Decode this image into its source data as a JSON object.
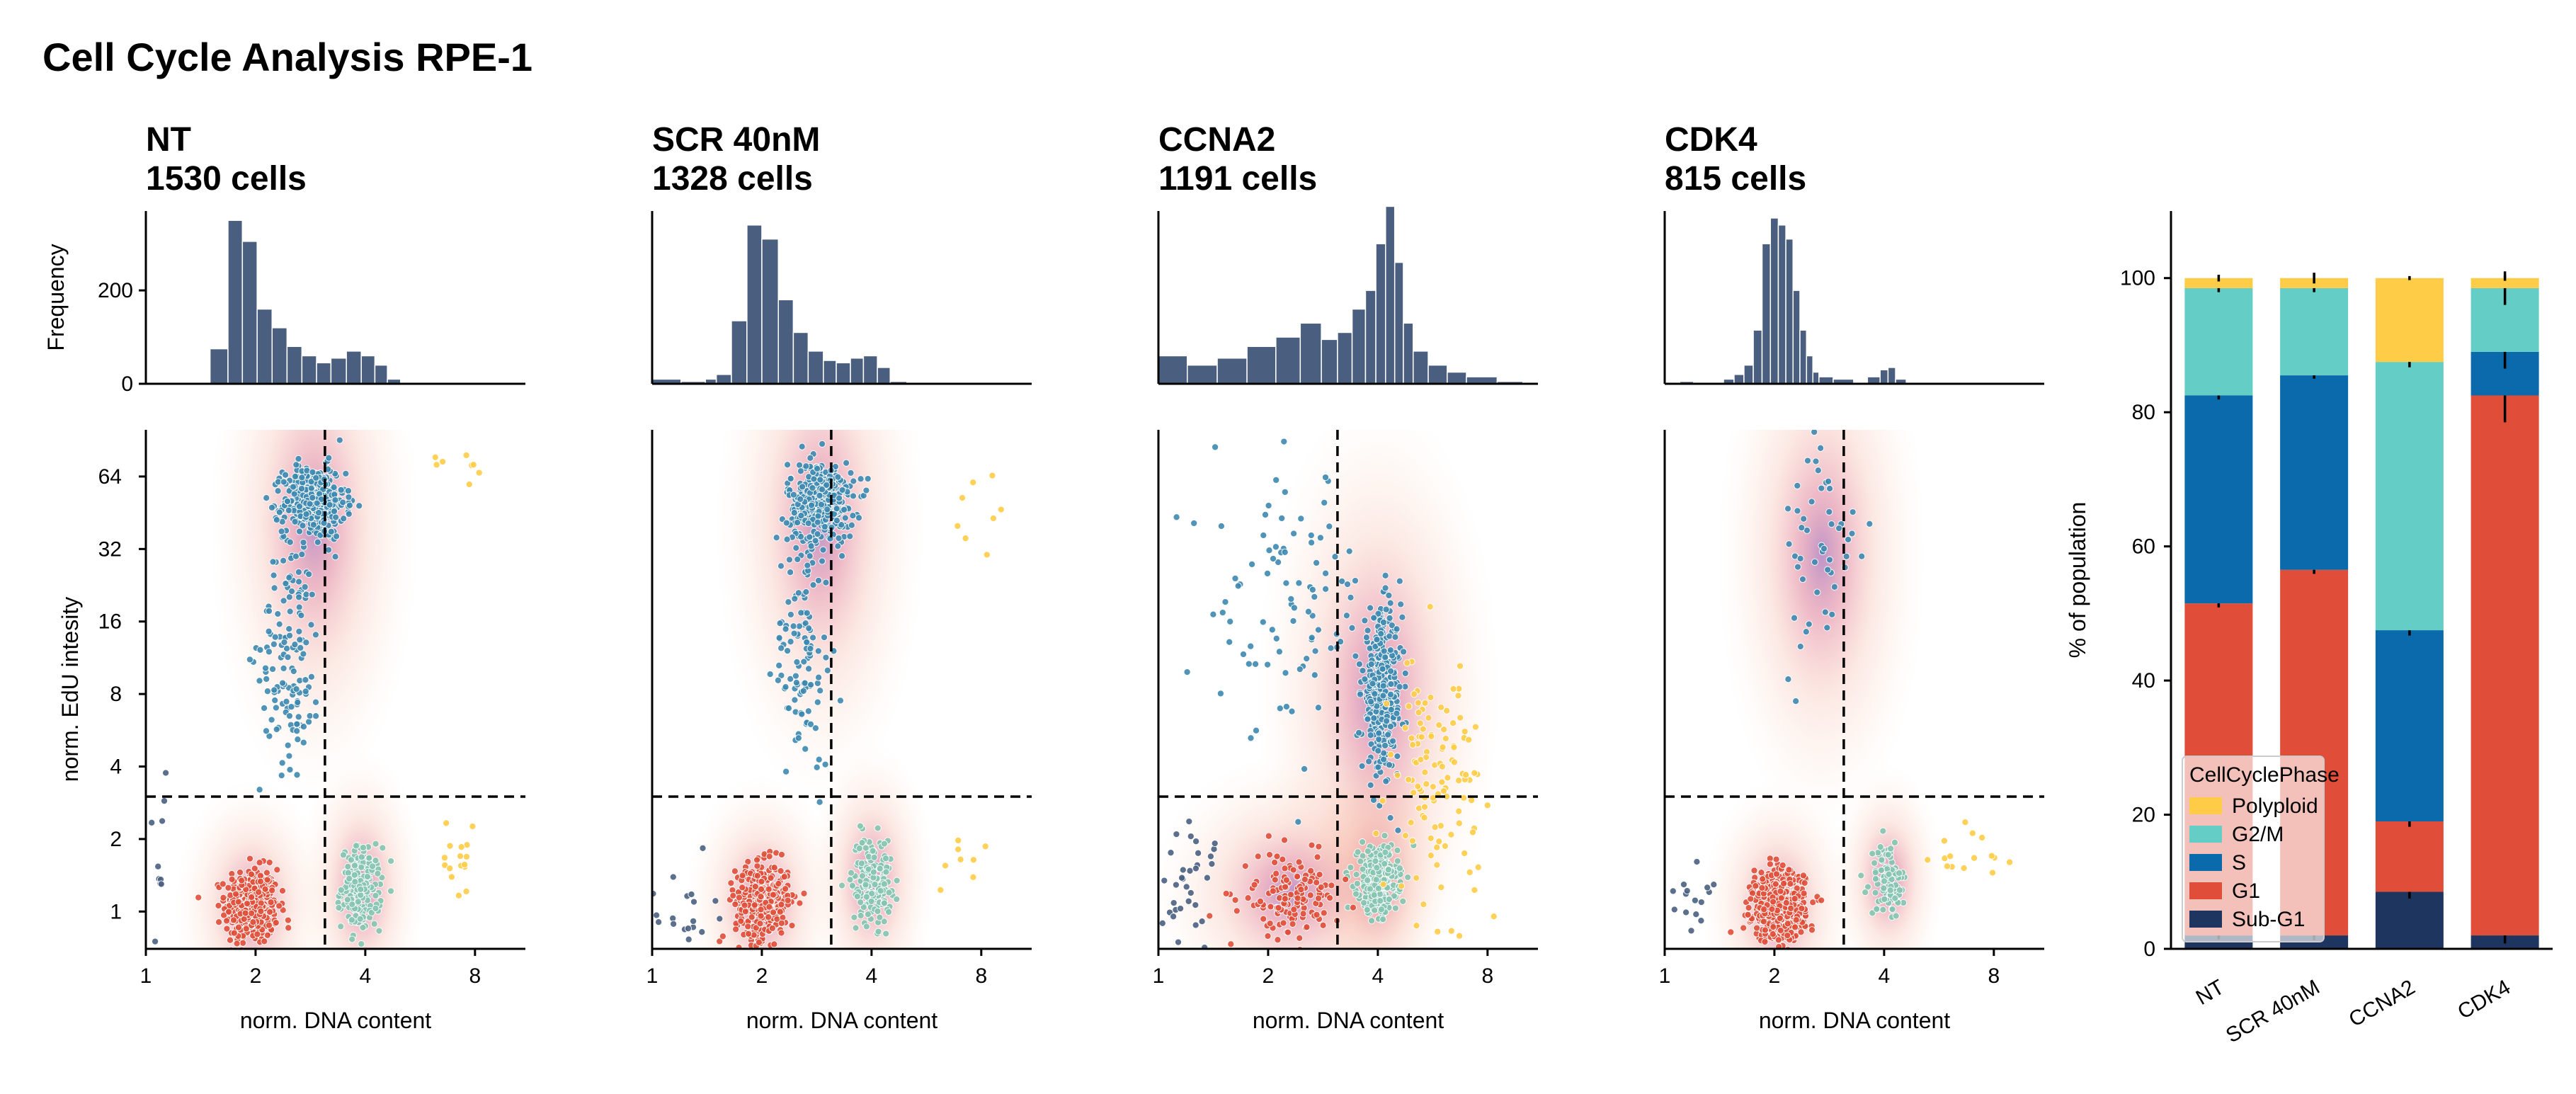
{
  "figure": {
    "title": "Cell Cycle Analysis RPE-1"
  },
  "colors": {
    "histogram": "#4a5f80",
    "Sub-G1": "#1e3560",
    "G1": "#e04e39",
    "S": "#0a6aab",
    "G2/M": "#64cdc5",
    "Polyploid": "#ffcc47",
    "scatter_s": "#3d88b0",
    "scatter_g1": "#e04e39",
    "scatter_g2": "#85c4b0",
    "scatter_poly": "#ffcc47",
    "scatter_subg1": "#4a5f80"
  },
  "panels": [
    {
      "label": "NT",
      "cells": "1530 cells"
    },
    {
      "label": "SCR 40nM",
      "cells": "1328 cells"
    },
    {
      "label": "CCNA2",
      "cells": "1191 cells"
    },
    {
      "label": "CDK4",
      "cells": "815 cells"
    }
  ],
  "axes": {
    "hist_ylabel": "Frequency",
    "hist_yticks": [
      "0",
      "200"
    ],
    "scatter_ylabel": "norm. EdU intesity",
    "scatter_xlabel": "norm. DNA content",
    "x_ticks": [
      "1",
      "2",
      "4",
      "8"
    ],
    "y_ticks": [
      "1",
      "2",
      "4",
      "8",
      "16",
      "32",
      "64"
    ],
    "bar_ylabel": "% of population",
    "bar_yticks": [
      "0",
      "20",
      "40",
      "60",
      "80",
      "100"
    ]
  },
  "chart_data": [
    {
      "type": "bar",
      "subtype": "stacked",
      "ylabel": "% of population",
      "ylim": [
        0,
        110
      ],
      "categories": [
        "NT",
        "SCR 40nM",
        "CCNA2",
        "CDK4"
      ],
      "series": [
        {
          "name": "Sub-G1",
          "values": [
            2,
            2,
            8.5,
            2
          ]
        },
        {
          "name": "G1",
          "values": [
            49.5,
            54.5,
            10.5,
            80.5
          ]
        },
        {
          "name": "S",
          "values": [
            31,
            29,
            28.5,
            6.5
          ]
        },
        {
          "name": "G2/M",
          "values": [
            16,
            13,
            40,
            9.5
          ]
        },
        {
          "name": "Polyploid",
          "values": [
            1.5,
            1.5,
            12.5,
            1.5
          ]
        }
      ],
      "legend": {
        "title": "CellCyclePhase",
        "position": "lower-left",
        "order": [
          "Polyploid",
          "G2/M",
          "S",
          "G1",
          "Sub-G1"
        ]
      }
    },
    {
      "type": "histogram",
      "panel": "NT",
      "ylabel": "Frequency",
      "x_scale": "log2",
      "xlim": [
        1,
        11
      ],
      "ylim": [
        0,
        370
      ],
      "bins": [
        [
          1.5,
          1.68,
          75
        ],
        [
          1.68,
          1.84,
          350
        ],
        [
          1.84,
          2.02,
          305
        ],
        [
          2.02,
          2.22,
          160
        ],
        [
          2.22,
          2.44,
          120
        ],
        [
          2.44,
          2.68,
          80
        ],
        [
          2.68,
          2.94,
          60
        ],
        [
          2.94,
          3.22,
          45
        ],
        [
          3.22,
          3.55,
          55
        ],
        [
          3.55,
          3.9,
          70
        ],
        [
          3.9,
          4.25,
          60
        ],
        [
          4.25,
          4.6,
          40
        ],
        [
          4.6,
          5,
          10
        ]
      ]
    },
    {
      "type": "histogram",
      "panel": "SCR 40nM",
      "x_scale": "log2",
      "xlim": [
        1,
        11
      ],
      "ylim": [
        0,
        370
      ],
      "bins": [
        [
          1,
          1.2,
          10
        ],
        [
          1.2,
          1.4,
          5
        ],
        [
          1.4,
          1.5,
          10
        ],
        [
          1.5,
          1.65,
          20
        ],
        [
          1.65,
          1.82,
          135
        ],
        [
          1.82,
          2,
          340
        ],
        [
          2,
          2.22,
          310
        ],
        [
          2.22,
          2.44,
          180
        ],
        [
          2.44,
          2.68,
          110
        ],
        [
          2.68,
          2.95,
          70
        ],
        [
          2.95,
          3.2,
          50
        ],
        [
          3.2,
          3.5,
          45
        ],
        [
          3.5,
          3.8,
          55
        ],
        [
          3.8,
          4.15,
          60
        ],
        [
          4.15,
          4.5,
          35
        ],
        [
          4.5,
          5,
          5
        ]
      ]
    },
    {
      "type": "histogram",
      "panel": "CCNA2",
      "x_scale": "log2",
      "xlim": [
        1,
        11
      ],
      "ylim": [
        0,
        370
      ],
      "bins": [
        [
          1,
          1.2,
          60
        ],
        [
          1.2,
          1.45,
          40
        ],
        [
          1.45,
          1.75,
          55
        ],
        [
          1.75,
          2.1,
          80
        ],
        [
          2.1,
          2.45,
          100
        ],
        [
          2.45,
          2.8,
          130
        ],
        [
          2.8,
          3.1,
          95
        ],
        [
          3.1,
          3.4,
          110
        ],
        [
          3.4,
          3.7,
          160
        ],
        [
          3.7,
          3.95,
          200
        ],
        [
          3.95,
          4.2,
          300
        ],
        [
          4.2,
          4.45,
          380
        ],
        [
          4.45,
          4.7,
          260
        ],
        [
          4.7,
          5,
          130
        ],
        [
          5,
          5.5,
          70
        ],
        [
          5.5,
          6.2,
          40
        ],
        [
          6.2,
          7,
          25
        ],
        [
          7,
          8.5,
          15
        ],
        [
          8.5,
          10,
          5
        ]
      ]
    },
    {
      "type": "histogram",
      "panel": "CDK4",
      "x_scale": "log2",
      "xlim": [
        1,
        11
      ],
      "ylim": [
        0,
        370
      ],
      "bins": [
        [
          1.1,
          1.2,
          5
        ],
        [
          1.45,
          1.55,
          10
        ],
        [
          1.55,
          1.65,
          20
        ],
        [
          1.65,
          1.75,
          40
        ],
        [
          1.75,
          1.85,
          115
        ],
        [
          1.85,
          1.95,
          300
        ],
        [
          1.95,
          2.05,
          355
        ],
        [
          2.05,
          2.15,
          340
        ],
        [
          2.15,
          2.25,
          310
        ],
        [
          2.25,
          2.35,
          200
        ],
        [
          2.35,
          2.45,
          115
        ],
        [
          2.45,
          2.55,
          60
        ],
        [
          2.55,
          2.65,
          25
        ],
        [
          2.65,
          2.9,
          15
        ],
        [
          2.9,
          3.3,
          10
        ],
        [
          3.6,
          3.9,
          15
        ],
        [
          3.9,
          4.1,
          30
        ],
        [
          4.1,
          4.3,
          35
        ],
        [
          4.3,
          4.6,
          10
        ]
      ]
    },
    {
      "type": "scatter",
      "panel": "NT",
      "xlabel": "norm. DNA content",
      "ylabel": "norm. EdU intesity",
      "x_scale": "log2",
      "y_scale": "log2",
      "xlim": [
        1,
        11
      ],
      "ylim": [
        0.7,
        100
      ],
      "gates": {
        "x": 3.1,
        "y": 3.0
      },
      "populations": [
        {
          "phase": "G1",
          "n": 420,
          "cx": 1.95,
          "cy": 1.05,
          "sx": 0.12,
          "sy": 0.26
        },
        {
          "phase": "G2/M",
          "n": 200,
          "cx": 3.9,
          "cy": 1.25,
          "sx": 0.09,
          "sy": 0.28
        },
        {
          "phase": "S",
          "n": 420,
          "cx": 2.9,
          "cy": 50,
          "sx": 0.14,
          "sy": 0.25
        },
        {
          "phase": "S",
          "n": 140,
          "cx": 2.5,
          "cy": 12,
          "sx": 0.14,
          "sy": 0.8
        },
        {
          "phase": "Polyploid",
          "n": 16,
          "cx": 7,
          "cy": 1.6,
          "sx": 0.12,
          "sy": 0.25
        },
        {
          "phase": "Polyploid",
          "n": 8,
          "cx": 7.5,
          "cy": 72,
          "sx": 0.15,
          "sy": 0.12
        },
        {
          "phase": "Sub-G1",
          "n": 15,
          "cx": 1.1,
          "cy": 1.2,
          "sx": 0.1,
          "sy": 1.4
        }
      ],
      "density": [
        {
          "cx": 1.95,
          "cy": 1.05,
          "sx": 0.22,
          "sy": 0.55
        },
        {
          "cx": 3.9,
          "cy": 1.25,
          "sx": 0.18,
          "sy": 0.6
        },
        {
          "cx": 2.9,
          "cy": 40,
          "sx": 0.3,
          "sy": 1.2
        }
      ]
    },
    {
      "type": "scatter",
      "panel": "SCR 40nM",
      "xlabel": "norm. DNA content",
      "x_scale": "log2",
      "y_scale": "log2",
      "xlim": [
        1,
        11
      ],
      "ylim": [
        0.7,
        100
      ],
      "gates": {
        "x": 3.1,
        "y": 3.0
      },
      "populations": [
        {
          "phase": "G1",
          "n": 380,
          "cx": 2.0,
          "cy": 1.1,
          "sx": 0.12,
          "sy": 0.26
        },
        {
          "phase": "G2/M",
          "n": 180,
          "cx": 4.0,
          "cy": 1.35,
          "sx": 0.09,
          "sy": 0.3
        },
        {
          "phase": "S",
          "n": 380,
          "cx": 2.9,
          "cy": 50,
          "sx": 0.15,
          "sy": 0.28
        },
        {
          "phase": "S",
          "n": 110,
          "cx": 2.6,
          "cy": 12,
          "sx": 0.13,
          "sy": 0.8
        },
        {
          "phase": "Polyploid",
          "n": 8,
          "cx": 7.5,
          "cy": 1.6,
          "sx": 0.18,
          "sy": 0.25
        },
        {
          "phase": "Polyploid",
          "n": 8,
          "cx": 8,
          "cy": 50,
          "sx": 0.12,
          "sy": 0.45
        },
        {
          "phase": "Sub-G1",
          "n": 20,
          "cx": 1.2,
          "cy": 1.0,
          "sx": 0.15,
          "sy": 0.3
        }
      ],
      "density": [
        {
          "cx": 2.0,
          "cy": 1.1,
          "sx": 0.22,
          "sy": 0.55
        },
        {
          "cx": 4.0,
          "cy": 1.35,
          "sx": 0.18,
          "sy": 0.6
        },
        {
          "cx": 2.9,
          "cy": 40,
          "sx": 0.3,
          "sy": 1.2
        }
      ]
    },
    {
      "type": "scatter",
      "panel": "CCNA2",
      "xlabel": "norm. DNA content",
      "x_scale": "log2",
      "y_scale": "log2",
      "xlim": [
        1,
        11
      ],
      "ylim": [
        0.7,
        100
      ],
      "gates": {
        "x": 3.1,
        "y": 3.0
      },
      "populations": [
        {
          "phase": "G2/M",
          "n": 360,
          "cx": 4.0,
          "cy": 1.35,
          "sx": 0.09,
          "sy": 0.22
        },
        {
          "phase": "S",
          "n": 360,
          "cx": 4.1,
          "cy": 8,
          "sx": 0.09,
          "sy": 0.55
        },
        {
          "phase": "S",
          "n": 90,
          "cx": 2.3,
          "cy": 20,
          "sx": 0.35,
          "sy": 0.9
        },
        {
          "phase": "G1",
          "n": 140,
          "cx": 2.3,
          "cy": 1.15,
          "sx": 0.22,
          "sy": 0.28
        },
        {
          "phase": "Polyploid",
          "n": 120,
          "cx": 5.8,
          "cy": 3.5,
          "sx": 0.2,
          "sy": 0.9
        },
        {
          "phase": "Sub-G1",
          "n": 40,
          "cx": 1.2,
          "cy": 1.2,
          "sx": 0.15,
          "sy": 0.5
        }
      ],
      "density": [
        {
          "cx": 4.0,
          "cy": 1.35,
          "sx": 0.2,
          "sy": 0.6
        },
        {
          "cx": 4.0,
          "cy": 8,
          "sx": 0.35,
          "sy": 1.3
        },
        {
          "cx": 2.3,
          "cy": 1.2,
          "sx": 0.4,
          "sy": 0.6
        }
      ]
    },
    {
      "type": "scatter",
      "panel": "CDK4",
      "xlabel": "norm. DNA content",
      "x_scale": "log2",
      "y_scale": "log2",
      "xlim": [
        1,
        11
      ],
      "ylim": [
        0.7,
        100
      ],
      "gates": {
        "x": 3.1,
        "y": 3.0
      },
      "populations": [
        {
          "phase": "G1",
          "n": 560,
          "cx": 2.05,
          "cy": 1.05,
          "sx": 0.12,
          "sy": 0.24
        },
        {
          "phase": "G2/M",
          "n": 90,
          "cx": 4.1,
          "cy": 1.35,
          "sx": 0.08,
          "sy": 0.25
        },
        {
          "phase": "S",
          "n": 50,
          "cx": 2.7,
          "cy": 30,
          "sx": 0.18,
          "sy": 0.9
        },
        {
          "phase": "Polyploid",
          "n": 15,
          "cx": 7,
          "cy": 1.6,
          "sx": 0.2,
          "sy": 0.3
        },
        {
          "phase": "Sub-G1",
          "n": 15,
          "cx": 1.2,
          "cy": 1.1,
          "sx": 0.12,
          "sy": 0.3
        }
      ],
      "density": [
        {
          "cx": 2.05,
          "cy": 1.05,
          "sx": 0.22,
          "sy": 0.55
        },
        {
          "cx": 4.1,
          "cy": 1.35,
          "sx": 0.16,
          "sy": 0.5
        },
        {
          "cx": 2.7,
          "cy": 30,
          "sx": 0.3,
          "sy": 1.2
        }
      ]
    }
  ]
}
